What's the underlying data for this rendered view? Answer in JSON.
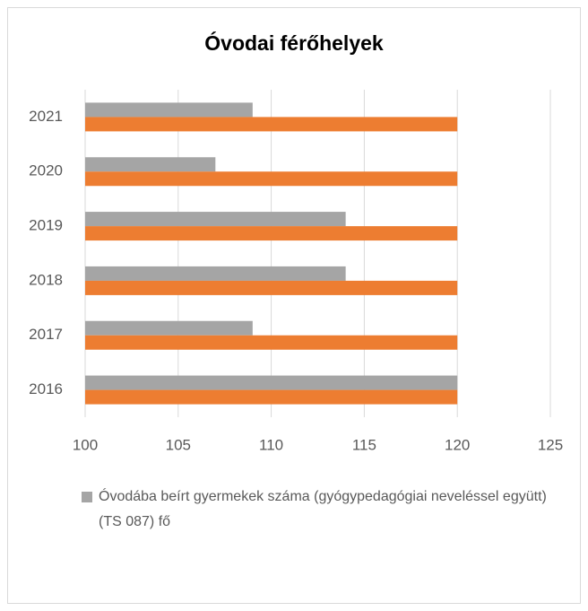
{
  "chart_data": {
    "type": "barh",
    "title": "Óvodai férőhelyek",
    "categories": [
      "2016",
      "2017",
      "2018",
      "2019",
      "2020",
      "2021"
    ],
    "series": [
      {
        "name": "Óvodába beírt gyermekek száma (gyógypedagógiai neveléssel együtt)\n(TS 087) fő",
        "color": "#a5a5a5",
        "values": [
          120,
          109,
          114,
          114,
          107,
          109
        ]
      },
      {
        "color": "#ed7d31",
        "values": [
          120,
          120,
          120,
          120,
          120,
          120
        ]
      }
    ],
    "xlim": [
      100,
      125
    ],
    "xticks": [
      100,
      105,
      110,
      115,
      120,
      125
    ],
    "grid": true,
    "legend": "bottom"
  }
}
